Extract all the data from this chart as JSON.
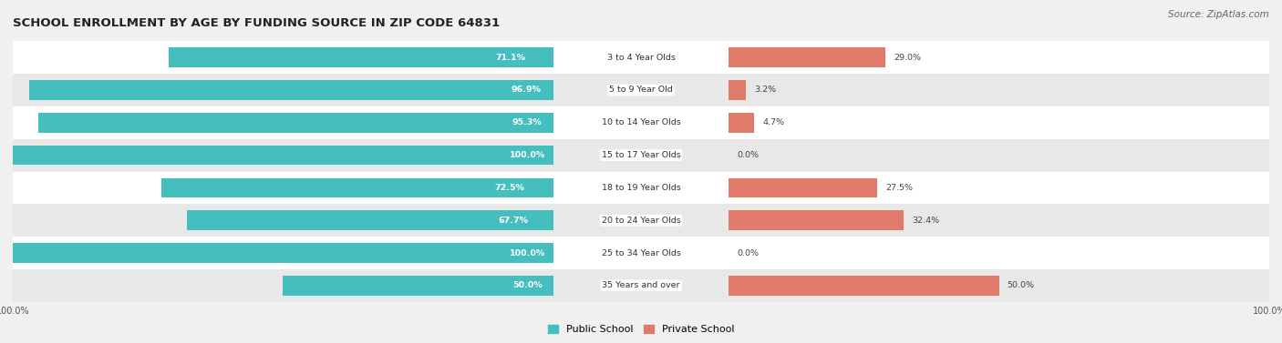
{
  "title": "SCHOOL ENROLLMENT BY AGE BY FUNDING SOURCE IN ZIP CODE 64831",
  "source": "Source: ZipAtlas.com",
  "categories": [
    "3 to 4 Year Olds",
    "5 to 9 Year Old",
    "10 to 14 Year Olds",
    "15 to 17 Year Olds",
    "18 to 19 Year Olds",
    "20 to 24 Year Olds",
    "25 to 34 Year Olds",
    "35 Years and over"
  ],
  "public_values": [
    71.1,
    96.9,
    95.3,
    100.0,
    72.5,
    67.7,
    100.0,
    50.0
  ],
  "private_values": [
    29.0,
    3.2,
    4.7,
    0.0,
    27.5,
    32.4,
    0.0,
    50.0
  ],
  "public_color": "#45bec0",
  "private_color": "#e07b6a",
  "public_label": "Public School",
  "private_label": "Private School",
  "bg_color": "#f0f0f0",
  "row_color_even": "#ffffff",
  "row_color_odd": "#e8e8e8",
  "bar_height": 0.6,
  "label_fontsize": 7.0,
  "title_fontsize": 9.5,
  "source_fontsize": 7.5,
  "cat_fontsize": 6.8,
  "value_fontsize": 6.8
}
